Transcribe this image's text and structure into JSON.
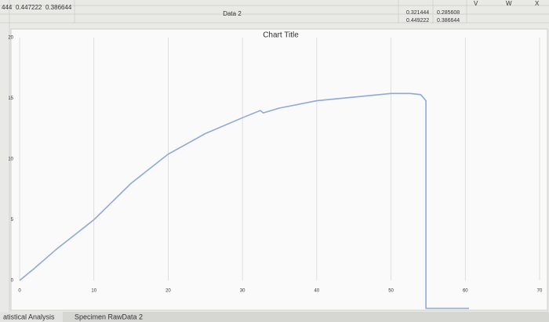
{
  "chart_data": {
    "type": "line",
    "title": "Chart Title",
    "x": [
      0,
      2,
      5,
      10,
      15,
      20,
      25,
      30,
      32.4,
      32.8,
      35,
      40,
      45,
      50,
      52.6,
      54,
      54.7,
      54.7,
      60,
      60.5
    ],
    "series": [
      {
        "color": "#8fa9d8",
        "values": [
          0,
          1.0,
          2.6,
          5.0,
          8.0,
          10.4,
          12.1,
          13.4,
          14.0,
          13.8,
          14.2,
          14.8,
          15.1,
          15.4,
          15.4,
          15.3,
          14.8,
          -2.3,
          -2.3,
          -2.3
        ]
      }
    ],
    "xlim": [
      0,
      70
    ],
    "xticks": [
      0,
      10,
      20,
      30,
      40,
      50,
      60,
      70
    ],
    "ylim": [
      0,
      20
    ],
    "yticks": [
      0,
      5,
      10,
      15,
      20
    ],
    "grid": true
  },
  "sheet": {
    "cells_left": [
      "444",
      "0.447222",
      "0.386644"
    ],
    "cell_header": "Data 2",
    "cells_right": [
      [
        "0.321444",
        "0.285608"
      ],
      [
        "0.449222",
        "0.386644"
      ]
    ],
    "columns": [
      "V",
      "W",
      "X"
    ],
    "tabs": [
      "atistical Analysis",
      "Specimen RawData 2"
    ]
  }
}
